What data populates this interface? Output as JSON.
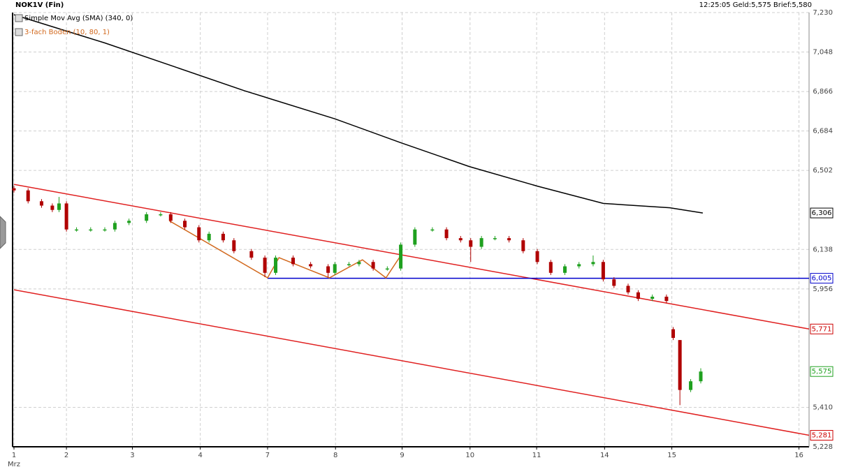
{
  "header": {
    "symbol": "NOK1V (Fin)",
    "quote": "12:25:05  Geld:5,575  Brief:5,580"
  },
  "chart_data": {
    "type": "candlestick",
    "legend": [
      {
        "label": "Simple Mov Avg (SMA) (340, 0)",
        "color": "#000000"
      },
      {
        "label": "3-fach Boden (10, 80, 1)",
        "color": "#d2691e"
      }
    ],
    "ylim": [
      5.228,
      7.23
    ],
    "yticks": [
      {
        "value": 7.23,
        "label": "7,230"
      },
      {
        "value": 7.048,
        "label": "7,048"
      },
      {
        "value": 6.866,
        "label": "6,866"
      },
      {
        "value": 6.684,
        "label": "6,684"
      },
      {
        "value": 6.502,
        "label": "6,502"
      },
      {
        "value": 6.138,
        "label": "6,138"
      },
      {
        "value": 5.956,
        "label": "5,956"
      },
      {
        "value": 5.41,
        "label": "5,410"
      },
      {
        "value": 5.228,
        "label": "5,228"
      }
    ],
    "xlim": [
      0,
      11.82
    ],
    "xticks": [
      {
        "value": 0,
        "label": "1"
      },
      {
        "value": 0.78,
        "label": "2"
      },
      {
        "value": 1.76,
        "label": "3"
      },
      {
        "value": 2.77,
        "label": "4"
      },
      {
        "value": 3.77,
        "label": "7"
      },
      {
        "value": 4.78,
        "label": "8"
      },
      {
        "value": 5.77,
        "label": "9"
      },
      {
        "value": 6.78,
        "label": "10"
      },
      {
        "value": 7.77,
        "label": "11"
      },
      {
        "value": 8.78,
        "label": "14"
      },
      {
        "value": 9.78,
        "label": "15"
      },
      {
        "value": 11.67,
        "label": "16"
      }
    ],
    "x_sublabel": "Mrz",
    "grid": true,
    "up_color": "#1fa01f",
    "down_color": "#b00000",
    "x": [
      0,
      0.21,
      0.41,
      0.57,
      0.67,
      0.78,
      0.93,
      1.14,
      1.35,
      1.5,
      1.71,
      1.97,
      2.18,
      2.33,
      2.54,
      2.75,
      2.9,
      3.11,
      3.27,
      3.53,
      3.73,
      3.89,
      4.15,
      4.41,
      4.67,
      4.77,
      4.98,
      5.13,
      5.34,
      5.55,
      5.75,
      5.96,
      6.22,
      6.43,
      6.64,
      6.79,
      6.95,
      7.15,
      7.36,
      7.57,
      7.78,
      7.98,
      8.19,
      8.4,
      8.61,
      8.76,
      8.92,
      9.13,
      9.28,
      9.49,
      9.7,
      9.8,
      9.9,
      10.06,
      10.21
    ],
    "open": [
      6.42,
      6.41,
      6.36,
      6.34,
      6.32,
      6.35,
      6.23,
      6.23,
      6.23,
      6.23,
      6.26,
      6.27,
      6.3,
      6.3,
      6.27,
      6.24,
      6.18,
      6.21,
      6.18,
      6.13,
      6.1,
      6.03,
      6.1,
      6.07,
      6.06,
      6.03,
      6.07,
      6.07,
      6.08,
      6.05,
      6.05,
      6.16,
      6.23,
      6.23,
      6.19,
      6.18,
      6.15,
      6.19,
      6.19,
      6.18,
      6.13,
      6.08,
      6.03,
      6.06,
      6.07,
      6.08,
      6.0,
      5.97,
      5.94,
      5.91,
      5.92,
      5.77,
      5.72,
      5.49,
      5.53
    ],
    "high": [
      6.43,
      6.42,
      6.37,
      6.35,
      6.38,
      6.36,
      6.24,
      6.24,
      6.24,
      6.27,
      6.28,
      6.31,
      6.31,
      6.31,
      6.28,
      6.25,
      6.22,
      6.22,
      6.19,
      6.14,
      6.11,
      6.11,
      6.11,
      6.08,
      6.07,
      6.08,
      6.08,
      6.09,
      6.09,
      6.06,
      6.17,
      6.24,
      6.24,
      6.24,
      6.2,
      6.19,
      6.2,
      6.2,
      6.2,
      6.19,
      6.14,
      6.09,
      6.07,
      6.08,
      6.11,
      6.09,
      6.01,
      5.98,
      5.95,
      5.93,
      5.93,
      5.78,
      5.72,
      5.54,
      5.59
    ],
    "low": [
      6.4,
      6.35,
      6.33,
      6.31,
      6.31,
      6.22,
      6.22,
      6.22,
      6.22,
      6.22,
      6.25,
      6.26,
      6.29,
      6.26,
      6.23,
      6.17,
      6.17,
      6.17,
      6.12,
      6.09,
      6.01,
      6.02,
      6.06,
      6.05,
      6.01,
      6.02,
      6.06,
      6.06,
      6.04,
      6.04,
      6.04,
      6.15,
      6.22,
      6.18,
      6.17,
      6.08,
      6.14,
      6.18,
      6.17,
      6.12,
      6.07,
      6.02,
      6.02,
      6.05,
      6.06,
      5.99,
      5.96,
      5.93,
      5.9,
      5.9,
      5.89,
      5.72,
      5.42,
      5.48,
      5.52
    ],
    "close": [
      6.41,
      6.36,
      6.34,
      6.32,
      6.35,
      6.23,
      6.23,
      6.23,
      6.23,
      6.26,
      6.27,
      6.3,
      6.3,
      6.27,
      6.24,
      6.18,
      6.21,
      6.18,
      6.13,
      6.1,
      6.03,
      6.1,
      6.07,
      6.06,
      6.03,
      6.07,
      6.07,
      6.08,
      6.05,
      6.05,
      6.16,
      6.23,
      6.23,
      6.19,
      6.18,
      6.15,
      6.19,
      6.19,
      6.18,
      6.13,
      6.08,
      6.03,
      6.06,
      6.07,
      6.08,
      6.0,
      5.97,
      5.94,
      5.91,
      5.92,
      5.9,
      5.73,
      5.49,
      5.53,
      5.575
    ],
    "overlays": [
      {
        "color": "#000000",
        "x": [
          0,
          1.35,
          2.39,
          3.42,
          4.77,
          5.75,
          6.77,
          7.78,
          8.76,
          9.75,
          10.24
        ],
        "values": [
          7.22,
          7.09,
          6.98,
          6.87,
          6.74,
          6.63,
          6.52,
          6.43,
          6.35,
          6.33,
          6.306
        ]
      },
      {
        "color": "#e02020",
        "x": [
          0,
          11.82
        ],
        "values": [
          6.438,
          5.771
        ]
      },
      {
        "color": "#e02020",
        "x": [
          0,
          11.82
        ],
        "values": [
          5.952,
          5.281
        ]
      },
      {
        "color": "#0000cc",
        "x": [
          3.77,
          11.82
        ],
        "values": [
          6.005,
          6.005
        ]
      },
      {
        "color": "#d2691e",
        "x": [
          2.31,
          3.77,
          3.94,
          4.69,
          5.18,
          5.53,
          5.75
        ],
        "values": [
          6.27,
          6.007,
          6.1,
          6.007,
          6.09,
          6.007,
          6.11
        ]
      }
    ],
    "markers": [
      {
        "value": 6.306,
        "label": "6,306",
        "color": "#000000"
      },
      {
        "value": 6.005,
        "label": "6,005",
        "color": "#0000cc"
      },
      {
        "value": 5.771,
        "label": "5,771",
        "color": "#cc0000"
      },
      {
        "value": 5.575,
        "label": "5,575",
        "color": "#1fa01f"
      },
      {
        "value": 5.281,
        "label": "5,281",
        "color": "#cc0000"
      }
    ]
  }
}
